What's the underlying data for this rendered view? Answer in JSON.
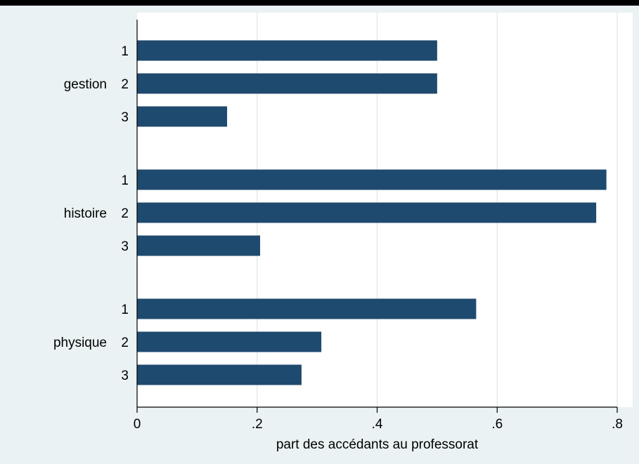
{
  "chart_data": {
    "type": "bar",
    "orientation": "horizontal",
    "title": "",
    "xlabel": "part des accédants au professorat",
    "ylabel": "",
    "xlim": [
      0,
      0.8
    ],
    "xticks": [
      0,
      0.2,
      0.4,
      0.6,
      0.8
    ],
    "xtick_labels": [
      "0",
      ".2",
      ".4",
      ".6",
      ".8"
    ],
    "grid": true,
    "legend": "none",
    "colors": {
      "bar": "#1f4a6f",
      "plot_background": "#ffffff",
      "page_background": "#eaf2f3",
      "grid": "#e3ebec"
    },
    "groups": [
      {
        "name": "gestion",
        "bars": [
          {
            "label": "1",
            "value": 0.5
          },
          {
            "label": "2",
            "value": 0.5
          },
          {
            "label": "3",
            "value": 0.15
          }
        ]
      },
      {
        "name": "histoire",
        "bars": [
          {
            "label": "1",
            "value": 0.782
          },
          {
            "label": "2",
            "value": 0.765
          },
          {
            "label": "3",
            "value": 0.205
          }
        ]
      },
      {
        "name": "physique",
        "bars": [
          {
            "label": "1",
            "value": 0.565
          },
          {
            "label": "2",
            "value": 0.307
          },
          {
            "label": "3",
            "value": 0.274
          }
        ]
      }
    ]
  }
}
